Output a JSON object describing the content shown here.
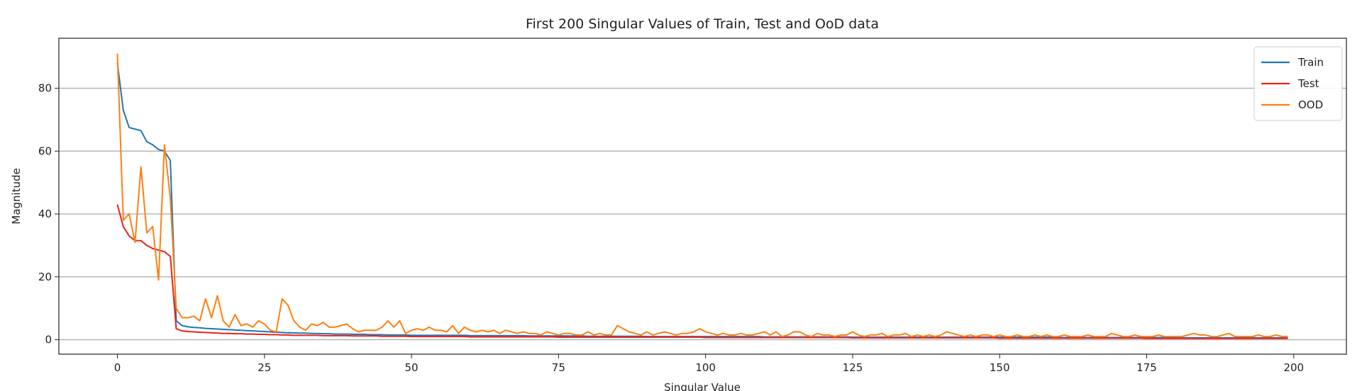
{
  "chart_data": {
    "type": "line",
    "title": "First 200 Singular Values of Train, Test and OoD data",
    "xlabel": "Singular Value",
    "ylabel": "Magnitude",
    "x": [
      0,
      1,
      2,
      3,
      4,
      5,
      6,
      7,
      8,
      9,
      10,
      11,
      12,
      13,
      14,
      15,
      16,
      17,
      18,
      19,
      20,
      21,
      22,
      23,
      24,
      25,
      26,
      27,
      28,
      29,
      30,
      31,
      32,
      33,
      34,
      35,
      36,
      37,
      38,
      39,
      40,
      41,
      42,
      43,
      44,
      45,
      46,
      47,
      48,
      49,
      50,
      51,
      52,
      53,
      54,
      55,
      56,
      57,
      58,
      59,
      60,
      61,
      62,
      63,
      64,
      65,
      66,
      67,
      68,
      69,
      70,
      71,
      72,
      73,
      74,
      75,
      76,
      77,
      78,
      79,
      80,
      81,
      82,
      83,
      84,
      85,
      86,
      87,
      88,
      89,
      90,
      91,
      92,
      93,
      94,
      95,
      96,
      97,
      98,
      99,
      100,
      101,
      102,
      103,
      104,
      105,
      106,
      107,
      108,
      109,
      110,
      111,
      112,
      113,
      114,
      115,
      116,
      117,
      118,
      119,
      120,
      121,
      122,
      123,
      124,
      125,
      126,
      127,
      128,
      129,
      130,
      131,
      132,
      133,
      134,
      135,
      136,
      137,
      138,
      139,
      140,
      141,
      142,
      143,
      144,
      145,
      146,
      147,
      148,
      149,
      150,
      151,
      152,
      153,
      154,
      155,
      156,
      157,
      158,
      159,
      160,
      161,
      162,
      163,
      164,
      165,
      166,
      167,
      168,
      169,
      170,
      171,
      172,
      173,
      174,
      175,
      176,
      177,
      178,
      179,
      180,
      181,
      182,
      183,
      184,
      185,
      186,
      187,
      188,
      189,
      190,
      191,
      192,
      193,
      194,
      195,
      196,
      197,
      198,
      199
    ],
    "series": [
      {
        "name": "Train",
        "color": "#1f77b4",
        "values": [
          88,
          73,
          67.5,
          67,
          66.5,
          63,
          62,
          60.5,
          60,
          57,
          6,
          4.5,
          4.1,
          3.9,
          3.8,
          3.6,
          3.5,
          3.4,
          3.3,
          3.2,
          3.1,
          3,
          2.9,
          2.8,
          2.7,
          2.6,
          2.5,
          2.4,
          2.3,
          2.2,
          2.2,
          2.1,
          2.1,
          2,
          2,
          1.9,
          1.9,
          1.8,
          1.8,
          1.8,
          1.7,
          1.7,
          1.7,
          1.6,
          1.6,
          1.6,
          1.5,
          1.5,
          1.5,
          1.5,
          1.4,
          1.4,
          1.4,
          1.4,
          1.4,
          1.4,
          1.4,
          1.4,
          1.4,
          1.4,
          1.3,
          1.3,
          1.3,
          1.3,
          1.3,
          1.3,
          1.3,
          1.3,
          1.3,
          1.3,
          1.2,
          1.2,
          1.2,
          1.2,
          1.2,
          1.2,
          1.2,
          1.2,
          1.2,
          1.2,
          1.1,
          1.1,
          1.1,
          1.1,
          1.1,
          1.1,
          1.1,
          1.1,
          1.1,
          1.1,
          1,
          1,
          1,
          1,
          1,
          1,
          1,
          1,
          1,
          1,
          1,
          1,
          1,
          1,
          1,
          1,
          1,
          1,
          1,
          1,
          0.9,
          0.9,
          0.9,
          0.9,
          0.9,
          0.9,
          0.9,
          0.9,
          0.9,
          0.9,
          0.9,
          0.9,
          0.9,
          0.9,
          0.9,
          0.8,
          0.8,
          0.8,
          0.8,
          0.8,
          0.8,
          0.8,
          0.8,
          0.8,
          0.8,
          0.8,
          0.8,
          0.8,
          0.8,
          0.8,
          0.8,
          0.8,
          0.8,
          0.8,
          0.8,
          0.8,
          0.8,
          0.8,
          0.8,
          0.8,
          0.8,
          0.8,
          0.8,
          0.8,
          0.8,
          0.8,
          0.8,
          0.8,
          0.8,
          0.8,
          0.7,
          0.7,
          0.7,
          0.7,
          0.7,
          0.7,
          0.7,
          0.7,
          0.7,
          0.7,
          0.7,
          0.7,
          0.7,
          0.7,
          0.7,
          0.7,
          0.7,
          0.7,
          0.7,
          0.7,
          0.6,
          0.6,
          0.6,
          0.6,
          0.6,
          0.6,
          0.6,
          0.6,
          0.6,
          0.6,
          0.6,
          0.6,
          0.6,
          0.6,
          0.6,
          0.6,
          0.6,
          0.6,
          0.6,
          0.6
        ]
      },
      {
        "name": "Test",
        "color": "#e8231c",
        "values": [
          43,
          36,
          33,
          31.5,
          31.5,
          30,
          29,
          28.5,
          28,
          26.5,
          3.5,
          2.8,
          2.6,
          2.5,
          2.4,
          2.3,
          2.2,
          2.1,
          2,
          2,
          1.9,
          1.9,
          1.8,
          1.8,
          1.7,
          1.7,
          1.6,
          1.6,
          1.5,
          1.5,
          1.4,
          1.4,
          1.4,
          1.4,
          1.4,
          1.3,
          1.3,
          1.3,
          1.3,
          1.3,
          1.2,
          1.2,
          1.2,
          1.2,
          1.2,
          1.1,
          1.1,
          1.1,
          1.1,
          1.1,
          1,
          1,
          1,
          1,
          1,
          1,
          1,
          1,
          1,
          1,
          0.9,
          0.9,
          0.9,
          0.9,
          0.9,
          0.9,
          0.9,
          0.9,
          0.9,
          0.9,
          0.9,
          0.9,
          0.9,
          0.9,
          0.9,
          0.8,
          0.8,
          0.8,
          0.8,
          0.8,
          0.8,
          0.8,
          0.8,
          0.8,
          0.8,
          0.8,
          0.8,
          0.8,
          0.8,
          0.8,
          0.8,
          0.8,
          0.8,
          0.8,
          0.8,
          0.8,
          0.8,
          0.8,
          0.8,
          0.8,
          0.7,
          0.7,
          0.7,
          0.7,
          0.7,
          0.7,
          0.7,
          0.7,
          0.7,
          0.7,
          0.7,
          0.7,
          0.7,
          0.7,
          0.7,
          0.7,
          0.7,
          0.7,
          0.7,
          0.7,
          0.7,
          0.7,
          0.7,
          0.7,
          0.7,
          0.6,
          0.6,
          0.6,
          0.6,
          0.6,
          0.6,
          0.6,
          0.6,
          0.6,
          0.6,
          0.6,
          0.6,
          0.6,
          0.6,
          0.6,
          0.6,
          0.6,
          0.6,
          0.6,
          0.6,
          0.6,
          0.6,
          0.6,
          0.6,
          0.6,
          0.5,
          0.5,
          0.5,
          0.5,
          0.5,
          0.5,
          0.5,
          0.5,
          0.5,
          0.5,
          0.5,
          0.5,
          0.5,
          0.5,
          0.5,
          0.5,
          0.5,
          0.5,
          0.5,
          0.5,
          0.5,
          0.5,
          0.5,
          0.5,
          0.5,
          0.4,
          0.4,
          0.4,
          0.4,
          0.4,
          0.4,
          0.4,
          0.4,
          0.4,
          0.4,
          0.4,
          0.4,
          0.4,
          0.4,
          0.4,
          0.4,
          0.4,
          0.4,
          0.4,
          0.4,
          0.4,
          0.4,
          0.4,
          0.4,
          0.4
        ]
      },
      {
        "name": "OOD",
        "color": "#ff7f0e",
        "values": [
          91,
          38,
          40,
          31,
          55,
          34,
          36,
          19,
          62,
          45,
          10,
          7,
          7,
          7.5,
          6,
          13,
          7,
          14,
          6,
          4,
          8,
          4.5,
          5,
          4,
          6,
          5,
          3,
          2.5,
          13,
          11,
          6,
          4,
          3,
          5,
          4.5,
          5.5,
          4,
          4,
          4.5,
          5,
          3.5,
          2.5,
          3,
          3,
          3,
          4,
          6,
          4,
          6,
          2,
          3,
          3.5,
          3,
          4,
          3,
          3,
          2.5,
          4.5,
          2,
          4,
          3,
          2.5,
          3,
          2.5,
          3,
          2,
          3,
          2.5,
          2,
          2.5,
          2,
          2,
          1.5,
          2.5,
          2,
          1.5,
          2,
          2,
          1.5,
          1.5,
          2.5,
          1.5,
          2,
          1.5,
          1.5,
          4.5,
          3.5,
          2.5,
          2,
          1.5,
          2.5,
          1.5,
          2,
          2.5,
          2,
          1.5,
          2,
          2,
          2.5,
          3.5,
          2.5,
          2,
          1.5,
          2,
          1.5,
          1.5,
          2,
          1.5,
          1.5,
          2,
          2.5,
          1.5,
          2.5,
          1,
          1.5,
          2.5,
          2.5,
          1.5,
          1,
          2,
          1.5,
          1.5,
          1,
          1.5,
          1.5,
          2.5,
          1.5,
          1,
          1.5,
          1.5,
          2,
          1,
          1.5,
          1.5,
          2,
          1,
          1.5,
          1,
          1.5,
          1,
          1.5,
          2.5,
          2,
          1.5,
          1,
          1.5,
          1,
          1.5,
          1.5,
          1,
          1.5,
          1,
          1,
          1.5,
          1,
          1,
          1.5,
          1,
          1.5,
          1,
          1,
          1.5,
          1,
          1,
          1,
          1.5,
          1,
          1,
          1,
          2,
          1.5,
          1,
          1,
          1.5,
          1,
          1,
          1,
          1.5,
          1,
          1,
          1,
          1,
          1.5,
          2,
          1.5,
          1.5,
          1,
          1,
          1.5,
          2,
          1,
          1,
          1,
          1,
          1.5,
          1,
          1,
          1.5,
          1,
          1
        ]
      }
    ],
    "xlim": [
      -9.95,
      208.95
    ],
    "ylim": [
      -4.6,
      95.9
    ],
    "xticks": [
      0,
      25,
      50,
      75,
      100,
      125,
      150,
      175,
      200
    ],
    "yticks": [
      0,
      20,
      40,
      60,
      80
    ],
    "grid": "y",
    "legend": "upper right"
  }
}
